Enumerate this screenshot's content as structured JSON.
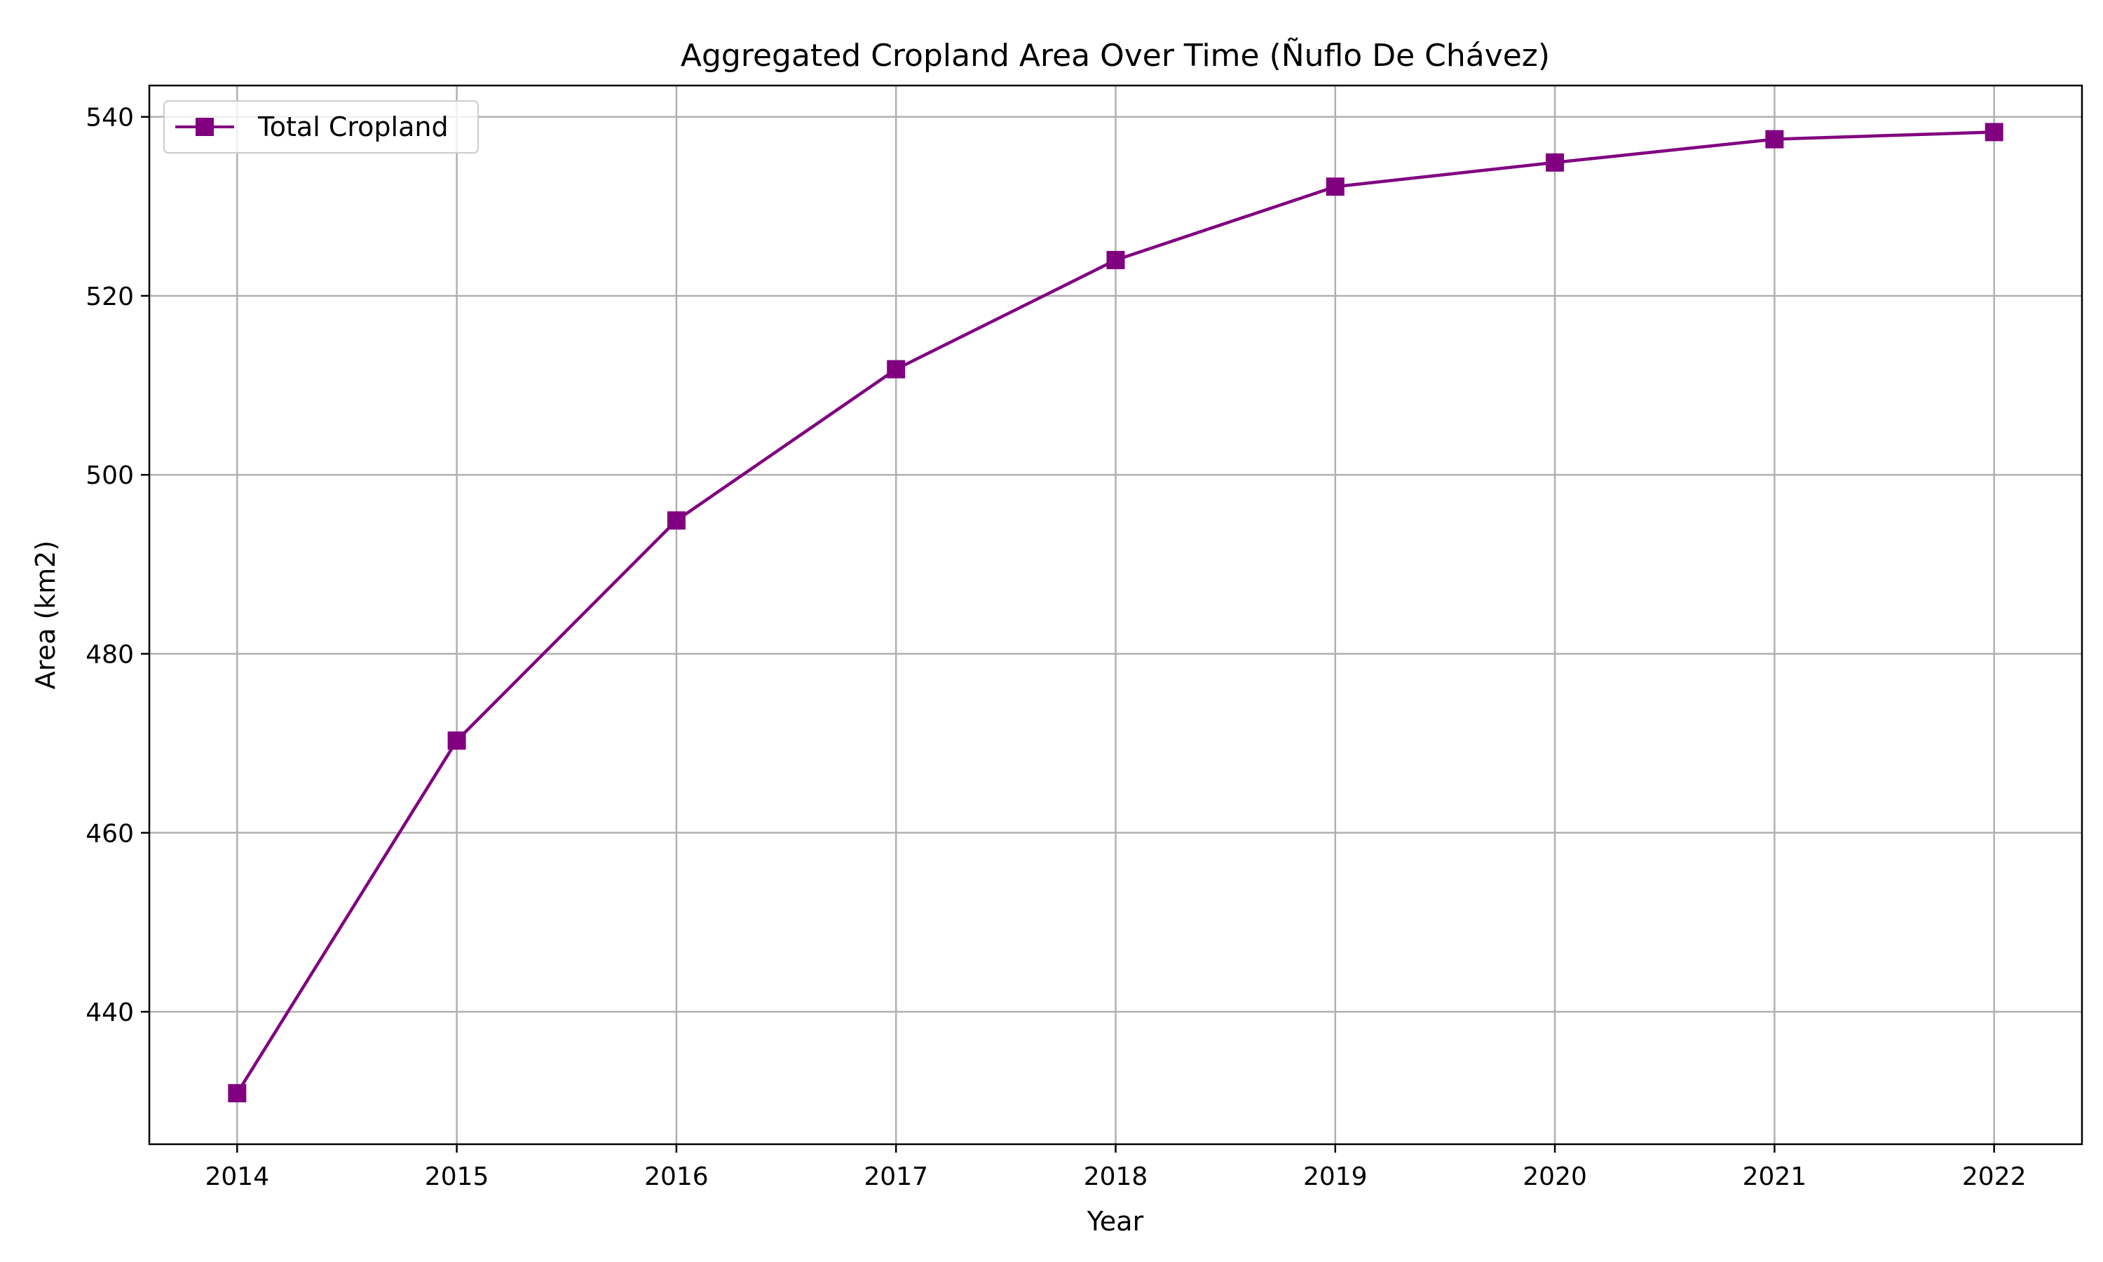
{
  "chart_data": {
    "type": "line",
    "title": "Aggregated Cropland Area Over Time (Ñuflo De Chávez)",
    "xlabel": "Year",
    "ylabel": "Area (km2)",
    "x": [
      2014,
      2015,
      2016,
      2017,
      2018,
      2019,
      2020,
      2021,
      2022
    ],
    "series": [
      {
        "name": "Total Cropland",
        "values": [
          430.9,
          470.3,
          494.9,
          511.8,
          524.0,
          532.2,
          534.9,
          537.5,
          538.3
        ],
        "color": "#800080",
        "marker": "square"
      }
    ],
    "xlim": [
      2013.6,
      2022.4
    ],
    "ylim": [
      425.2,
      543.5
    ],
    "xticks": [
      "2014",
      "2015",
      "2016",
      "2017",
      "2018",
      "2019",
      "2020",
      "2021",
      "2022"
    ],
    "yticks": [
      "440",
      "460",
      "480",
      "500",
      "520",
      "540"
    ],
    "grid": true,
    "legend_position": "top-left"
  }
}
